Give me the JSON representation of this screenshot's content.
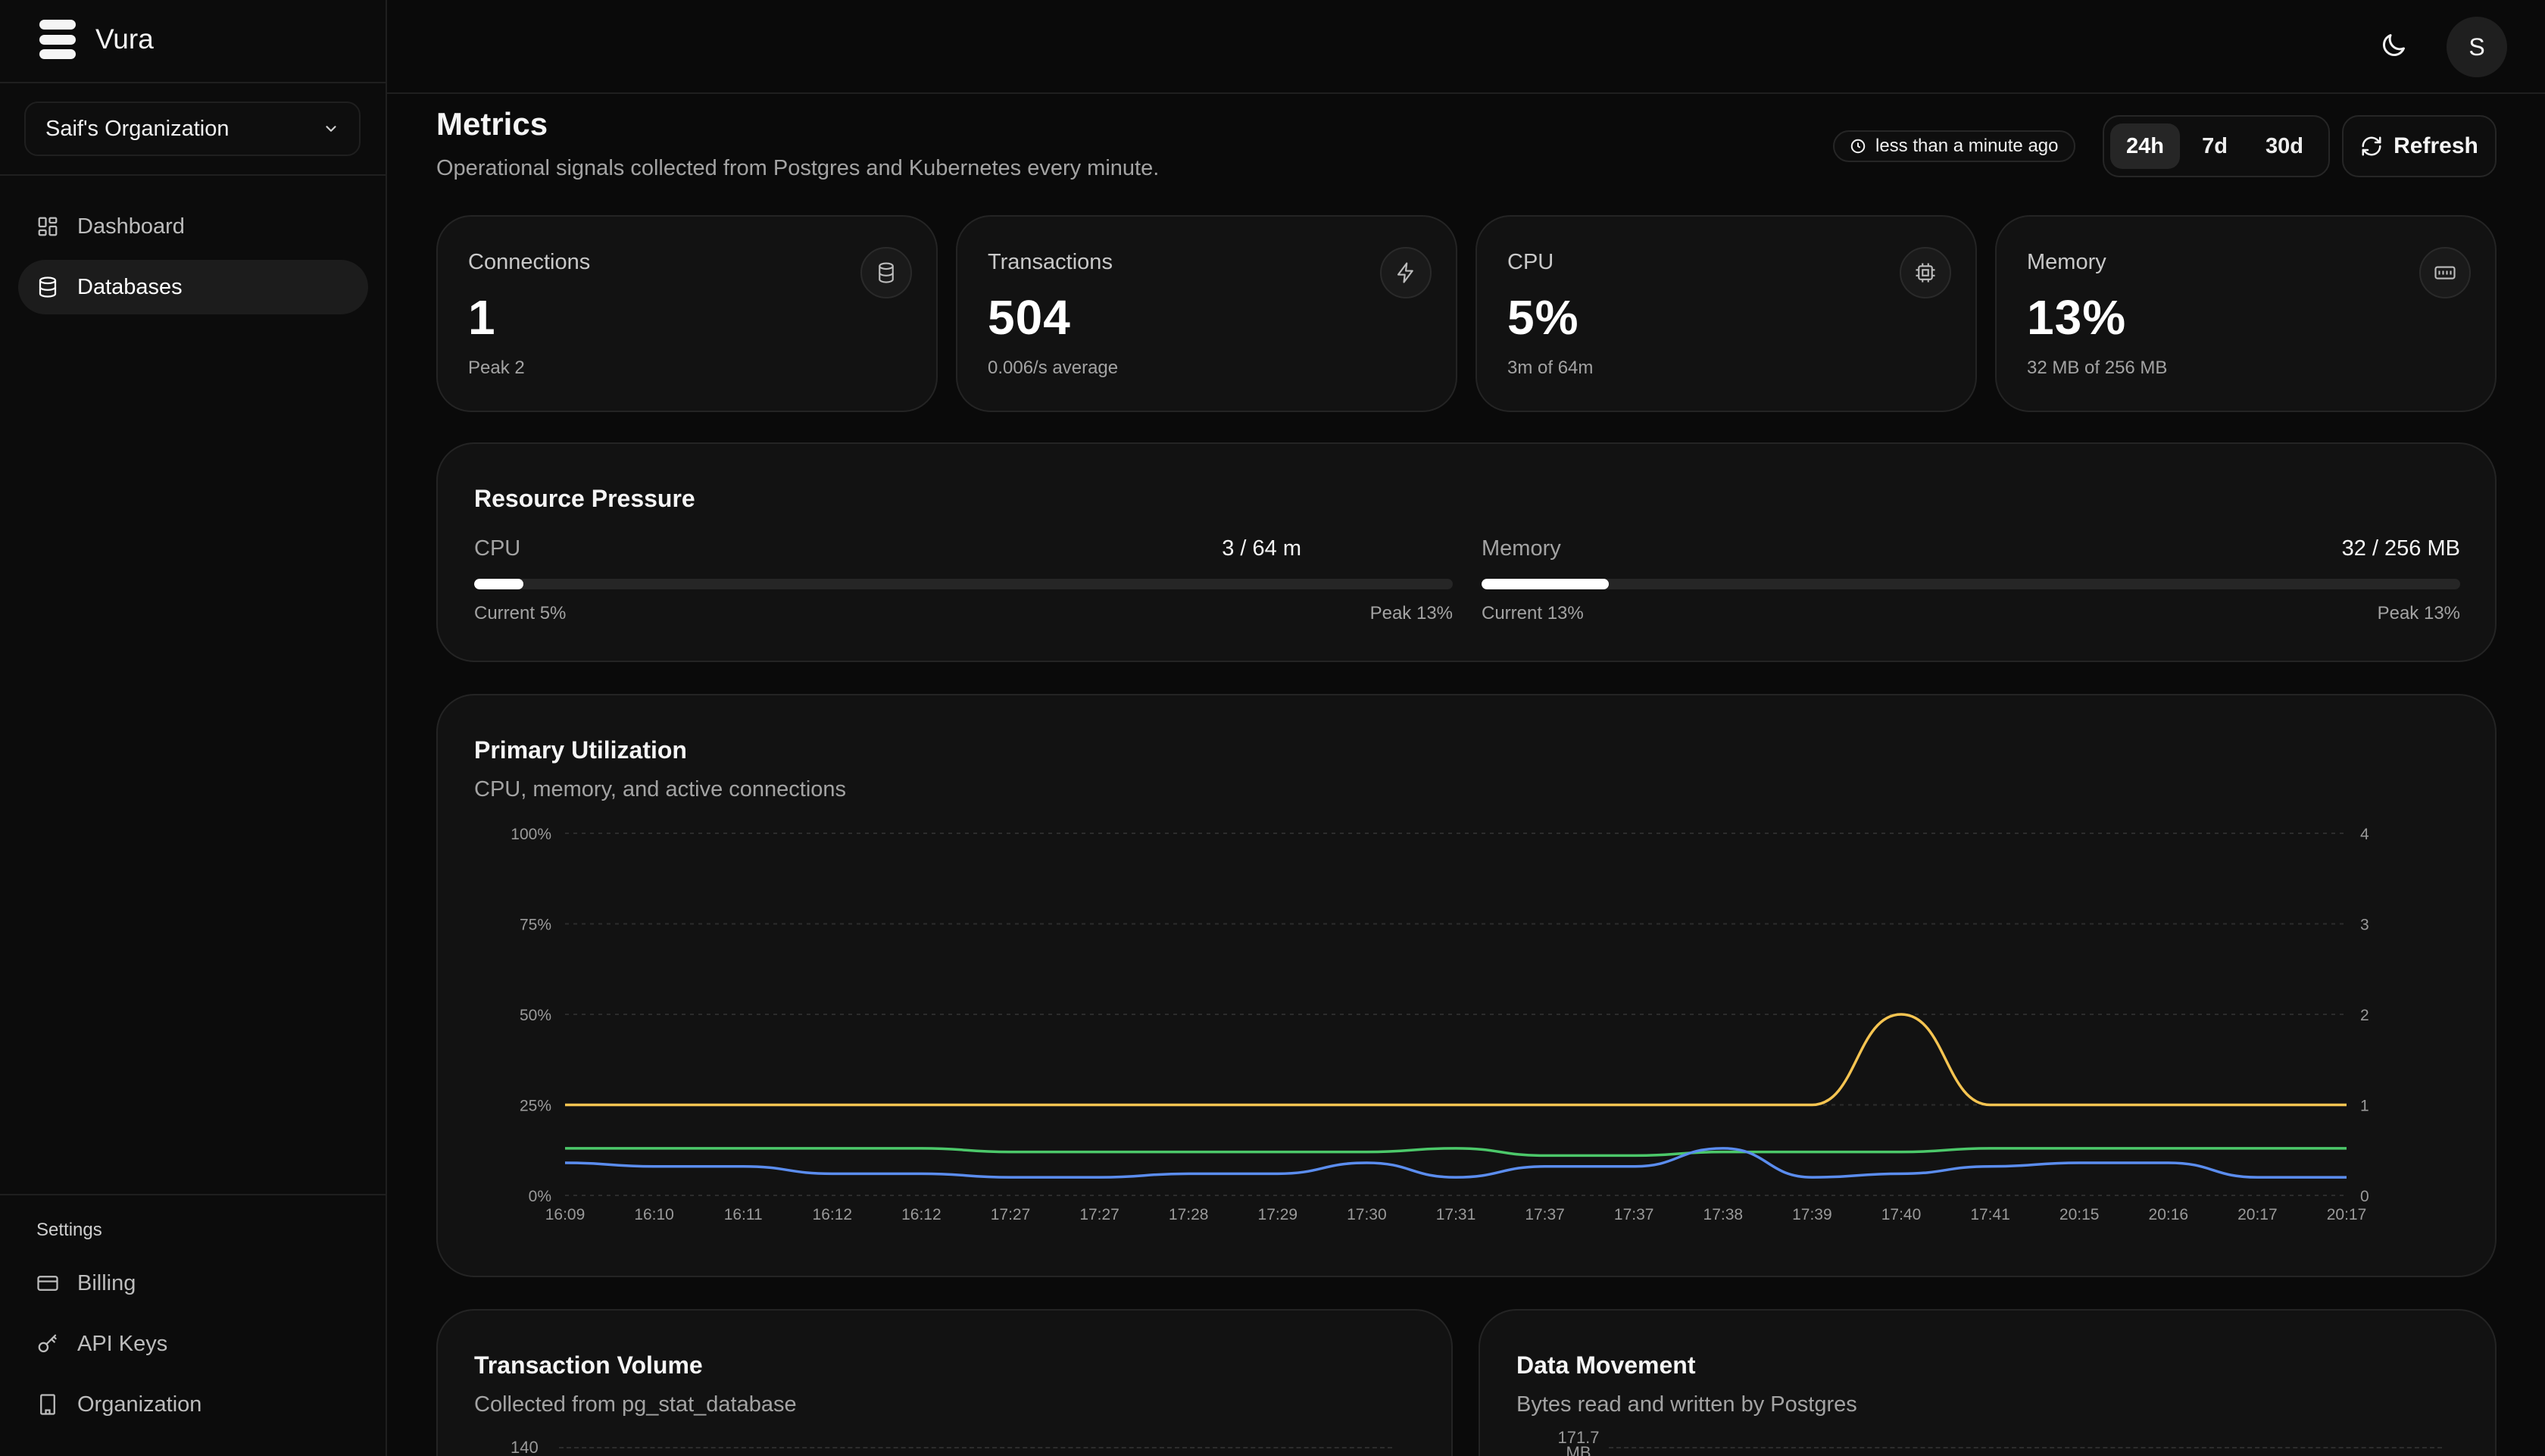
{
  "app": {
    "name": "Vura"
  },
  "sidebar": {
    "org": "Saif's Organization",
    "nav": [
      {
        "label": "Dashboard",
        "active": false
      },
      {
        "label": "Databases",
        "active": true
      }
    ],
    "settings_label": "Settings",
    "settings_items": [
      {
        "label": "Billing"
      },
      {
        "label": "API Keys"
      },
      {
        "label": "Organization"
      }
    ]
  },
  "topbar": {
    "avatar_initial": "S",
    "theme_icon": "moon-icon"
  },
  "header": {
    "title": "Metrics",
    "subtitle": "Operational signals collected from Postgres and Kubernetes every minute.",
    "updated": "less than a minute ago",
    "ranges": [
      "24h",
      "7d",
      "30d"
    ],
    "active_range": "24h",
    "refresh": "Refresh"
  },
  "stats": [
    {
      "label": "Connections",
      "value": "1",
      "sub": "Peak 2",
      "icon": "database-icon"
    },
    {
      "label": "Transactions",
      "value": "504",
      "sub": "0.006/s average",
      "icon": "bolt-icon"
    },
    {
      "label": "CPU",
      "value": "5%",
      "sub": "3m of 64m",
      "icon": "cpu-icon"
    },
    {
      "label": "Memory",
      "value": "13%",
      "sub": "32 MB of 256 MB",
      "icon": "memory-icon"
    }
  ],
  "pressure": {
    "title": "Resource Pressure",
    "cpu": {
      "label": "CPU",
      "value": "3 / 64 m",
      "current": "Current 5%",
      "peak": "Peak 13%",
      "fill": 0.05
    },
    "memory": {
      "label": "Memory",
      "value": "32 / 256 MB",
      "current": "Current 13%",
      "peak": "Peak 13%",
      "fill": 0.13
    }
  },
  "utilization": {
    "title": "Primary Utilization",
    "subtitle": "CPU, memory, and active connections"
  },
  "tx_volume": {
    "title": "Transaction Volume",
    "subtitle": "Collected from pg_stat_database",
    "top_tick": "140"
  },
  "data_movement": {
    "title": "Data Movement",
    "subtitle": "Bytes read and written by Postgres",
    "top_tick": "171.7 MB"
  },
  "colors": {
    "cpu": "#5b8def",
    "memory": "#4cc86a",
    "connections": "#f5c451",
    "grid": "#2c2c2c",
    "axis_text": "#9a9a9a"
  },
  "chart_data": {
    "type": "line",
    "x": [
      "16:09",
      "16:10",
      "16:11",
      "16:12",
      "16:12",
      "17:27",
      "17:27",
      "17:28",
      "17:29",
      "17:30",
      "17:31",
      "17:37",
      "17:37",
      "17:38",
      "17:39",
      "17:40",
      "17:41",
      "20:15",
      "20:16",
      "20:17",
      "20:17"
    ],
    "y_left_ticks": [
      "0%",
      "25%",
      "50%",
      "75%",
      "100%"
    ],
    "y_right_ticks": [
      "0",
      "1",
      "2",
      "3",
      "4"
    ],
    "ylim_left": [
      0,
      100
    ],
    "ylim_right": [
      0,
      4
    ],
    "grid": true,
    "series": [
      {
        "key": "connections",
        "axis": "right",
        "values": [
          1,
          1,
          1,
          1,
          1,
          1,
          1,
          1,
          1,
          1,
          1,
          1,
          1,
          1,
          1,
          2,
          1,
          1,
          1,
          1,
          1
        ]
      },
      {
        "key": "memory",
        "axis": "left",
        "values": [
          13,
          13,
          13,
          13,
          13,
          12,
          12,
          12,
          12,
          12,
          13,
          11,
          11,
          12,
          12,
          12,
          13,
          13,
          13,
          13,
          13
        ]
      },
      {
        "key": "cpu",
        "axis": "left",
        "values": [
          9,
          8,
          8,
          6,
          6,
          5,
          5,
          6,
          6,
          9,
          5,
          8,
          8,
          13,
          5,
          6,
          8,
          9,
          9,
          5,
          5
        ]
      }
    ]
  }
}
